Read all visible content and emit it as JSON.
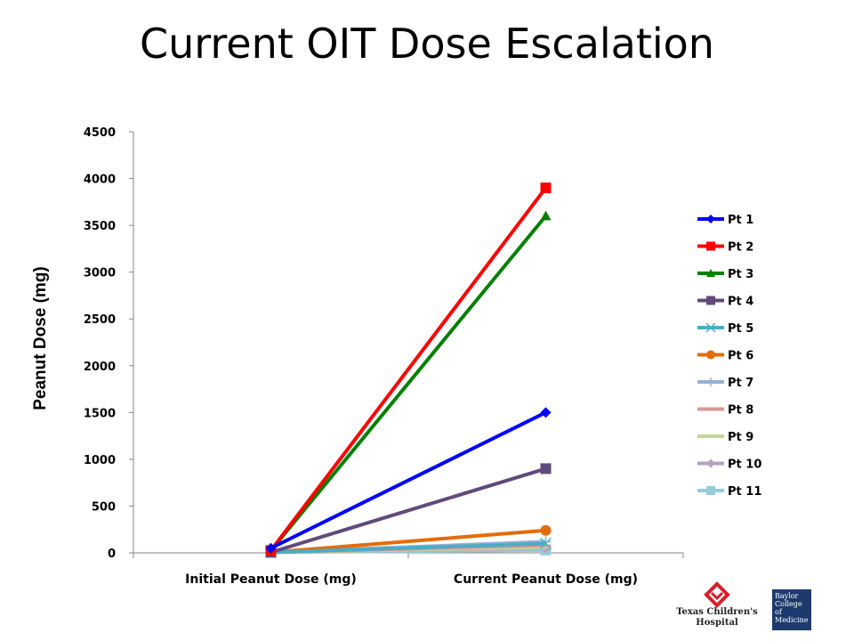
{
  "title": "Current OIT Dose Escalation",
  "logos": {
    "tch_line1": "Texas Children's",
    "tch_line2": "Hospital",
    "bcm_line1": "Baylor",
    "bcm_line2": "College of",
    "bcm_line3": "Medicine"
  },
  "chart_data": {
    "type": "line",
    "title": "",
    "xlabel": "",
    "ylabel": "Peanut Dose (mg)",
    "categories": [
      "Initial Peanut Dose (mg)",
      "Current Peanut Dose (mg)"
    ],
    "ylim": [
      0,
      4500
    ],
    "yticks": [
      0,
      500,
      1000,
      1500,
      2000,
      2500,
      3000,
      3500,
      4000,
      4500
    ],
    "grid": false,
    "legend_position": "right",
    "series": [
      {
        "name": "Pt 1",
        "values": [
          50,
          1500
        ],
        "color": "#0000ff",
        "marker": "diamond"
      },
      {
        "name": "Pt 2",
        "values": [
          25,
          3900
        ],
        "color": "#ff0000",
        "marker": "square"
      },
      {
        "name": "Pt 3",
        "values": [
          25,
          3600
        ],
        "color": "#008000",
        "marker": "triangle"
      },
      {
        "name": "Pt 4",
        "values": [
          6,
          900
        ],
        "color": "#604a7b",
        "marker": "square"
      },
      {
        "name": "Pt 5",
        "values": [
          6,
          100
        ],
        "color": "#4bacc6",
        "marker": "x"
      },
      {
        "name": "Pt 6",
        "values": [
          6,
          240
        ],
        "color": "#e36c09",
        "marker": "circle"
      },
      {
        "name": "Pt 7",
        "values": [
          6,
          120
        ],
        "color": "#95b3d7",
        "marker": "plus"
      },
      {
        "name": "Pt 8",
        "values": [
          6,
          80
        ],
        "color": "#d99694",
        "marker": "dash"
      },
      {
        "name": "Pt 9",
        "values": [
          6,
          60
        ],
        "color": "#c3d69b",
        "marker": "dash"
      },
      {
        "name": "Pt 10",
        "values": [
          6,
          50
        ],
        "color": "#b3a2c7",
        "marker": "diamond"
      },
      {
        "name": "Pt 11",
        "values": [
          6,
          30
        ],
        "color": "#93cddd",
        "marker": "square"
      }
    ]
  }
}
